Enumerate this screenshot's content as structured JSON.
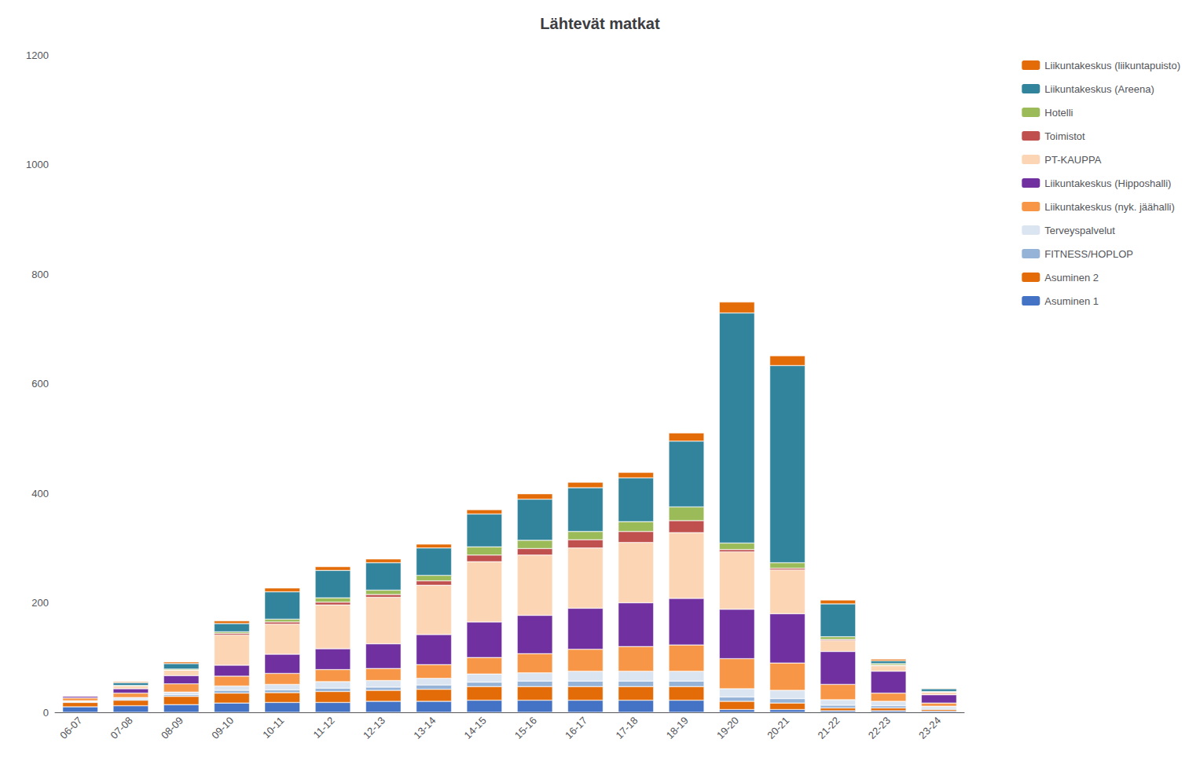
{
  "chart_data": {
    "type": "bar",
    "title": "Lähtevät matkat",
    "stacked": true,
    "grid": false,
    "legend": "right",
    "categories": [
      "06-07",
      "07-08",
      "08-09",
      "09-10",
      "10-11",
      "11-12",
      "12-13",
      "13-14",
      "14-15",
      "15-16",
      "16-17",
      "17-18",
      "18-19",
      "19-20",
      "20-21",
      "21-22",
      "22-23",
      "23-24"
    ],
    "series": [
      {
        "name": "Asuminen 1",
        "color": "#4472C4",
        "values": [
          10,
          12,
          14,
          17,
          18,
          18,
          20,
          20,
          22,
          22,
          22,
          22,
          22,
          5,
          5,
          3,
          3,
          2
        ]
      },
      {
        "name": "Asuminen 2",
        "color": "#E36C09",
        "values": [
          8,
          10,
          15,
          18,
          18,
          20,
          20,
          22,
          25,
          25,
          25,
          25,
          25,
          15,
          12,
          5,
          5,
          3
        ]
      },
      {
        "name": "FITNESS/HOPLOP",
        "color": "#95B3D7",
        "values": [
          1,
          2,
          3,
          5,
          5,
          6,
          6,
          8,
          8,
          10,
          10,
          10,
          10,
          8,
          8,
          5,
          4,
          2
        ]
      },
      {
        "name": "Terveyspalvelut",
        "color": "#DBE5F1",
        "values": [
          2,
          3,
          5,
          8,
          10,
          12,
          12,
          12,
          15,
          15,
          18,
          18,
          18,
          15,
          15,
          10,
          8,
          4
        ]
      },
      {
        "name": "Liikuntakeskus (nyk. jäähalli)",
        "color": "#F79646",
        "values": [
          5,
          8,
          15,
          18,
          20,
          22,
          22,
          25,
          30,
          35,
          40,
          45,
          48,
          55,
          50,
          28,
          15,
          6
        ]
      },
      {
        "name": "Liikuntakeskus (Hipposhalli)",
        "color": "#7030A0",
        "values": [
          3,
          8,
          15,
          20,
          35,
          38,
          45,
          55,
          65,
          70,
          75,
          80,
          85,
          90,
          90,
          60,
          40,
          15
        ]
      },
      {
        "name": "PT-KAUPPA",
        "color": "#FCD5B4",
        "values": [
          2,
          5,
          10,
          55,
          55,
          80,
          85,
          90,
          110,
          110,
          110,
          110,
          120,
          105,
          80,
          20,
          10,
          5
        ]
      },
      {
        "name": "Toimistot",
        "color": "#C0504D",
        "values": [
          0,
          0,
          0,
          3,
          4,
          5,
          5,
          8,
          12,
          12,
          15,
          20,
          22,
          4,
          3,
          2,
          1,
          0
        ]
      },
      {
        "name": "Hotelli",
        "color": "#9BBB59",
        "values": [
          0,
          1,
          2,
          3,
          5,
          8,
          8,
          10,
          15,
          15,
          15,
          18,
          25,
          12,
          10,
          5,
          3,
          1
        ]
      },
      {
        "name": "Liikuntakeskus (Areena)",
        "color": "#31849B",
        "values": [
          0,
          5,
          10,
          15,
          50,
          50,
          50,
          50,
          60,
          75,
          80,
          80,
          120,
          420,
          360,
          60,
          5,
          5
        ]
      },
      {
        "name": "Liikuntakeskus (liikuntapuisto)",
        "color": "#E36C09",
        "values": [
          0,
          2,
          3,
          5,
          7,
          7,
          7,
          7,
          8,
          10,
          10,
          10,
          15,
          20,
          18,
          7,
          3,
          1
        ]
      }
    ],
    "ylim": [
      0,
      1200
    ],
    "yticks": [
      0,
      200,
      400,
      600,
      800,
      1000,
      1200
    ]
  }
}
